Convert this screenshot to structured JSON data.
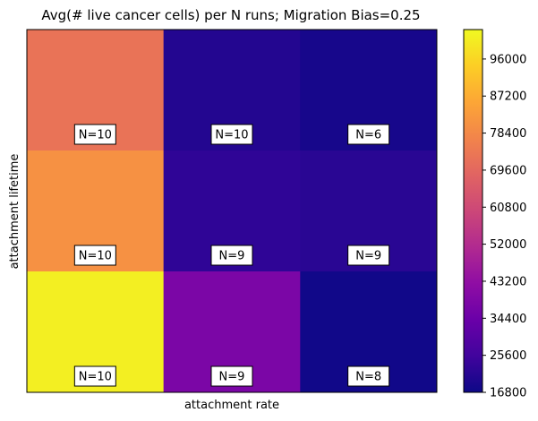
{
  "chart_data": {
    "type": "heatmap",
    "title": "Avg(# live cancer cells) per N runs; Migration Bias=0.25",
    "xlabel": "attachment rate",
    "ylabel": "attachment lifetime",
    "x_tick_labels": [],
    "y_tick_labels": [],
    "colormap": "plasma",
    "colorbar": {
      "vmin": 16800,
      "vmax": 103000,
      "ticks": [
        16800,
        25600,
        34400,
        43200,
        52000,
        60800,
        69600,
        78400,
        87200,
        96000
      ]
    },
    "rows": [
      {
        "cells": [
          {
            "value": 72500,
            "label": "N=10"
          },
          {
            "value": 20500,
            "label": "N=10"
          },
          {
            "value": 18500,
            "label": "N=6"
          }
        ]
      },
      {
        "cells": [
          {
            "value": 80500,
            "label": "N=10"
          },
          {
            "value": 22500,
            "label": "N=9"
          },
          {
            "value": 21500,
            "label": "N=9"
          }
        ]
      },
      {
        "cells": [
          {
            "value": 101000,
            "label": "N=10"
          },
          {
            "value": 38000,
            "label": "N=9"
          },
          {
            "value": 17500,
            "label": "N=8"
          }
        ]
      }
    ]
  }
}
